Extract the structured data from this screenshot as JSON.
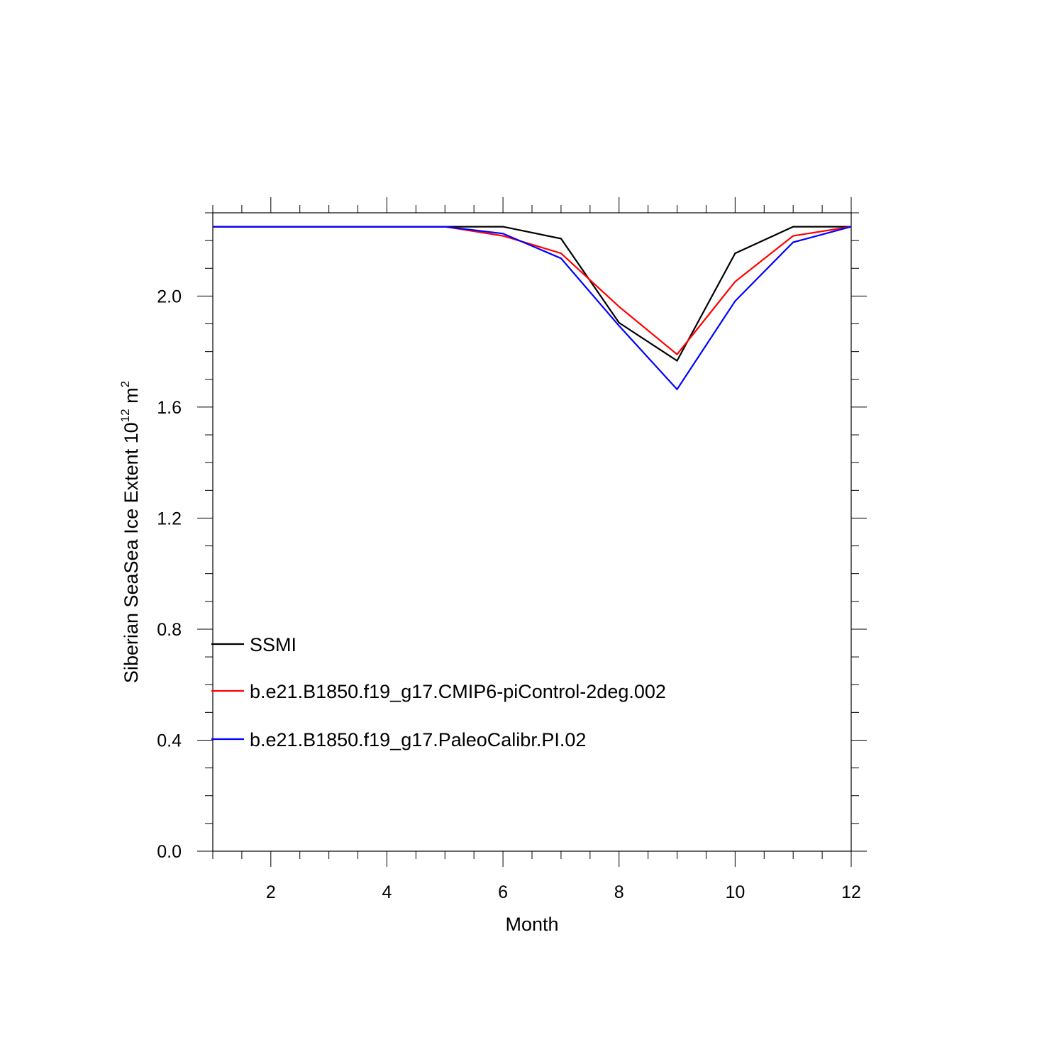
{
  "chart_data": {
    "type": "line",
    "xlabel": "Month",
    "ylabel": "Siberian SeaSea Ice Extent 10",
    "ylabel_exponent": "12",
    "ylabel_unit": " m",
    "ylabel_unit_exponent": "2",
    "xlim": [
      1,
      12
    ],
    "ylim": [
      0.0,
      2.3
    ],
    "x_ticks": [
      2,
      4,
      6,
      8,
      10,
      12
    ],
    "x_tick_labels": [
      "2",
      "4",
      "6",
      "8",
      "10",
      "12"
    ],
    "y_ticks": [
      0.0,
      0.4,
      0.8,
      1.2,
      1.6,
      2.0
    ],
    "y_tick_labels": [
      "0.0",
      "0.4",
      "0.8",
      "1.2",
      "1.6",
      "2.0"
    ],
    "grid": false,
    "legend_position": "lower-left",
    "x": [
      1,
      2,
      3,
      4,
      5,
      6,
      7,
      8,
      9,
      10,
      11,
      12
    ],
    "series": [
      {
        "name": "SSMI",
        "color": "#000000",
        "values": [
          2.25,
          2.25,
          2.25,
          2.25,
          2.25,
          2.25,
          2.207,
          1.904,
          1.767,
          2.154,
          2.25,
          2.25
        ]
      },
      {
        "name": "b.e21.B1850.f19_g17.CMIP6-piControl-2deg.002",
        "color": "#ff0000",
        "values": [
          2.25,
          2.25,
          2.25,
          2.25,
          2.25,
          2.217,
          2.154,
          1.962,
          1.79,
          2.052,
          2.217,
          2.25
        ]
      },
      {
        "name": "b.e21.B1850.f19_g17.PaleoCalibr.PI.02",
        "color": "#0000ff",
        "values": [
          2.25,
          2.25,
          2.25,
          2.25,
          2.25,
          2.225,
          2.136,
          1.893,
          1.664,
          1.982,
          2.194,
          2.25
        ]
      }
    ]
  }
}
